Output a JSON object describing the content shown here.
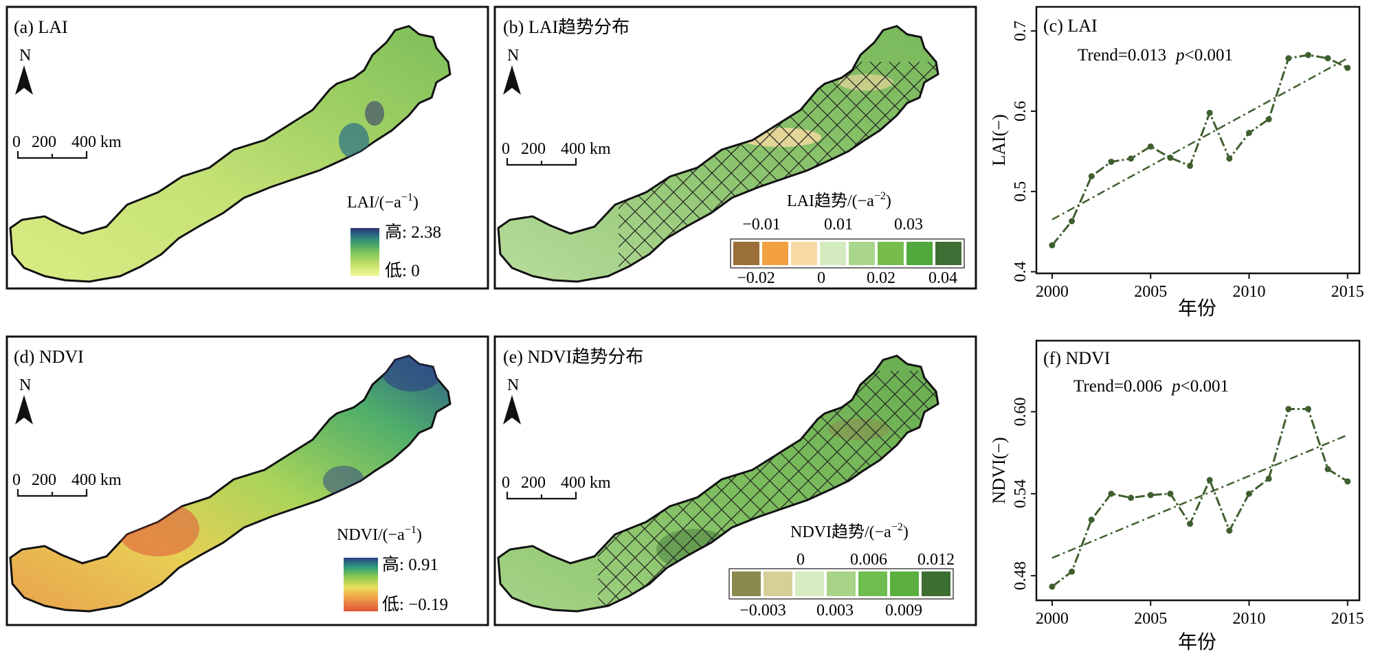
{
  "colors": {
    "line": "#3f5f2f",
    "lai_ramp": [
      "#f4f99a",
      "#c2e06a",
      "#7cc35a",
      "#3f9c6c",
      "#2a6f86",
      "#2b2f6e"
    ],
    "ndvi_ramp": [
      "#e0543a",
      "#f0a048",
      "#e9df5a",
      "#86c84f",
      "#2f9e7a",
      "#2d3e86"
    ],
    "lai_trend_classes": [
      "#9a6f3a",
      "#f2a040",
      "#f9d9a3",
      "#d3ebbe",
      "#a9d68c",
      "#76bd4e",
      "#52a83d",
      "#3e6e33"
    ],
    "ndvi_trend_classes": [
      "#8b8a4e",
      "#d6cf98",
      "#d6ebc0",
      "#a8d487",
      "#6fbd4f",
      "#5aaf3f",
      "#3c6e32"
    ]
  },
  "panels": {
    "a": {
      "title": "(a) LAI",
      "north": "N",
      "scale": {
        "ticks": [
          "0",
          "200",
          "400 km"
        ]
      },
      "legend_title": "LAI/(−a",
      "legend_title_sup": "−1",
      "legend_title_end": ")",
      "high": "高: 2.38",
      "low": "低: 0",
      "icon": "north-arrow-icon"
    },
    "b": {
      "title": "(b) LAI趋势分布",
      "north": "N",
      "scale": {
        "ticks": [
          "0",
          "200",
          "400 km"
        ]
      },
      "legend_title": "LAI趋势/(−a",
      "legend_title_sup": "−2",
      "legend_title_end": ")",
      "top_labels": [
        "−0.01",
        "0.01",
        "0.03"
      ],
      "bottom_labels": [
        "−0.02",
        "0",
        "0.02",
        "0.04"
      ]
    },
    "d": {
      "title": "(d) NDVI",
      "north": "N",
      "scale": {
        "ticks": [
          "0",
          "200",
          "400 km"
        ]
      },
      "legend_title": "NDVI/(−a",
      "legend_title_sup": "−1",
      "legend_title_end": ")",
      "high": "高: 0.91",
      "low": "低: −0.19"
    },
    "e": {
      "title": "(e) NDVI趋势分布",
      "north": "N",
      "scale": {
        "ticks": [
          "0",
          "200",
          "400 km"
        ]
      },
      "legend_title": "NDVI趋势/(−a",
      "legend_title_sup": "−2",
      "legend_title_end": ")",
      "top_labels": [
        "0",
        "0.006",
        "0.012"
      ],
      "bottom_labels": [
        "−0.003",
        "0.003",
        "0.009"
      ]
    }
  },
  "chart_data": [
    {
      "type": "line",
      "panel_label": "(c) LAI",
      "annotation_trend": "Trend=0.013",
      "annotation_p_italic": "p",
      "annotation_p_rest": "<0.001",
      "xlabel": "年份",
      "ylabel": "LAI(−)",
      "x_ticks": [
        2000,
        2005,
        2010,
        2015
      ],
      "y_ticks": [
        0.4,
        0.5,
        0.6,
        0.7
      ],
      "y_tick_labels": [
        "0.4",
        "0.5",
        "0.6",
        "0.7"
      ],
      "xlim": [
        1999.2,
        2015.6
      ],
      "ylim": [
        0.398,
        0.73
      ],
      "x": [
        2000,
        2001,
        2002,
        2003,
        2004,
        2005,
        2006,
        2007,
        2008,
        2009,
        2010,
        2011,
        2012,
        2013,
        2014,
        2015
      ],
      "values": [
        0.433,
        0.463,
        0.519,
        0.537,
        0.541,
        0.556,
        0.542,
        0.532,
        0.598,
        0.541,
        0.573,
        0.59,
        0.666,
        0.67,
        0.666,
        0.654
      ],
      "trend_line": {
        "x": [
          2000,
          2015
        ],
        "y": [
          0.465,
          0.666
        ]
      }
    },
    {
      "type": "line",
      "panel_label": "(f) NDVI",
      "annotation_trend": "Trend=0.006",
      "annotation_p_italic": "p",
      "annotation_p_rest": "<0.001",
      "xlabel": "年份",
      "ylabel": "NDVI(−)",
      "x_ticks": [
        2000,
        2005,
        2010,
        2015
      ],
      "y_ticks": [
        0.48,
        0.54,
        0.6
      ],
      "y_tick_labels": [
        "0.48",
        "0.54",
        "0.60"
      ],
      "xlim": [
        1999.2,
        2015.6
      ],
      "ylim": [
        0.462,
        0.652
      ],
      "x": [
        2000,
        2001,
        2002,
        2003,
        2004,
        2005,
        2006,
        2007,
        2008,
        2009,
        2010,
        2011,
        2012,
        2013,
        2014,
        2015
      ],
      "values": [
        0.472,
        0.483,
        0.521,
        0.54,
        0.537,
        0.539,
        0.54,
        0.518,
        0.55,
        0.513,
        0.54,
        0.551,
        0.602,
        0.602,
        0.558,
        0.549
      ],
      "trend_line": {
        "x": [
          2000,
          2015
        ],
        "y": [
          0.493,
          0.583
        ]
      }
    }
  ]
}
